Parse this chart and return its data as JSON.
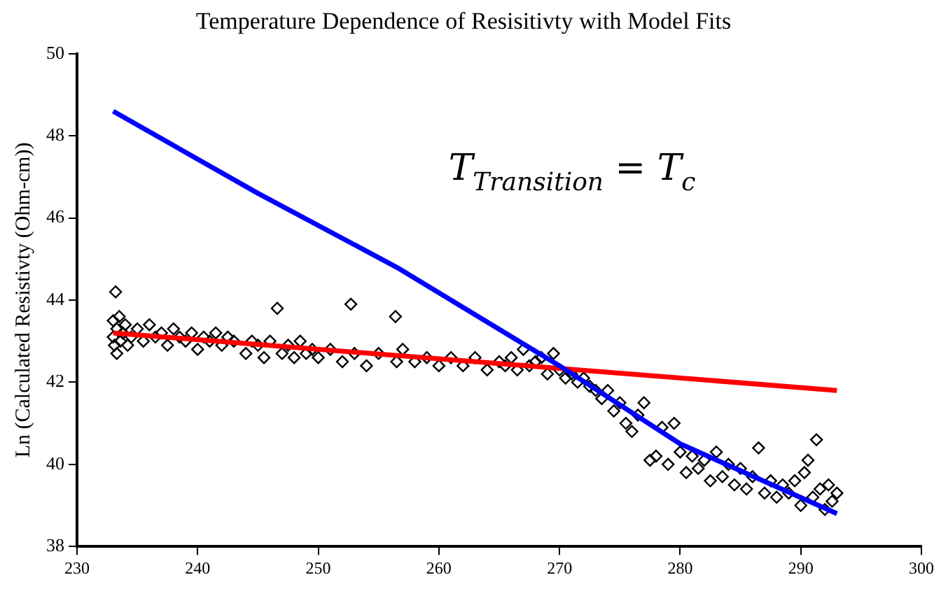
{
  "chart_data": {
    "type": "scatter",
    "title": "Temperature Dependence of Resisitivty with Model Fits",
    "ylabel": "Ln (Calculated Resistivty (Ohm-cm))",
    "annotations": [
      "T$_{Transition}$ = T$_{c}$"
    ],
    "xlim": [
      230,
      300
    ],
    "ylim": [
      38,
      50
    ],
    "xticks": [
      230,
      240,
      250,
      260,
      270,
      280,
      290,
      300
    ],
    "yticks": [
      38,
      40,
      42,
      44,
      46,
      48,
      50
    ],
    "grid": false,
    "legend": false,
    "marker": "diamond",
    "series": [
      {
        "color": "#000000",
        "x": [
          233,
          233,
          233.1,
          233.2,
          233.3,
          233.3,
          233.5,
          233.6,
          233.8,
          234,
          234.2,
          234.5,
          235,
          235.5,
          236,
          236.5,
          237,
          237.5,
          238,
          238.5,
          239,
          239.5,
          240,
          240.5,
          241,
          241.5,
          242,
          242.5,
          243,
          244,
          244.5,
          245,
          245.5,
          246,
          246.6,
          247,
          247.5,
          248,
          248.5,
          249,
          249.5,
          250,
          251,
          252,
          252.7,
          253,
          254,
          255,
          256.4,
          256.5,
          257,
          258,
          259,
          260,
          261,
          262,
          263,
          264,
          265,
          265.5,
          266,
          266.5,
          267,
          267.5,
          268,
          268.5,
          269,
          269.5,
          270,
          270.5,
          271,
          271.5,
          272,
          272.5,
          273,
          273.5,
          274,
          274.5,
          275,
          275.5,
          276,
          276.5,
          277,
          277.5,
          278,
          278.5,
          279,
          279.5,
          280,
          280.5,
          281,
          281.5,
          282,
          282.5,
          283,
          283.5,
          284,
          284.5,
          285,
          285.5,
          286,
          286.5,
          287,
          287.5,
          288,
          288.5,
          289,
          289.5,
          290,
          290.3,
          290.6,
          291,
          291.3,
          291.6,
          292,
          292.3,
          292.6,
          293
        ],
        "values": [
          43.5,
          43.1,
          42.9,
          44.2,
          43.3,
          42.7,
          43.6,
          43.0,
          43.2,
          43.4,
          42.9,
          43.1,
          43.3,
          43.0,
          43.4,
          43.1,
          43.2,
          42.9,
          43.3,
          43.1,
          43.0,
          43.2,
          42.8,
          43.1,
          43.0,
          43.2,
          42.9,
          43.1,
          43.0,
          42.7,
          43.0,
          42.9,
          42.6,
          43.0,
          43.8,
          42.7,
          42.9,
          42.6,
          43.0,
          42.7,
          42.8,
          42.6,
          42.8,
          42.5,
          43.9,
          42.7,
          42.4,
          42.7,
          43.6,
          42.5,
          42.8,
          42.5,
          42.6,
          42.4,
          42.6,
          42.4,
          42.6,
          42.3,
          42.5,
          42.4,
          42.6,
          42.3,
          42.8,
          42.4,
          42.5,
          42.6,
          42.2,
          42.7,
          42.3,
          42.1,
          42.2,
          42.0,
          42.1,
          41.9,
          41.8,
          41.6,
          41.8,
          41.3,
          41.5,
          41.0,
          40.8,
          41.2,
          41.5,
          40.1,
          40.2,
          40.9,
          40.0,
          41.0,
          40.3,
          39.8,
          40.2,
          39.9,
          40.1,
          39.6,
          40.3,
          39.7,
          40.0,
          39.5,
          39.9,
          39.4,
          39.7,
          40.4,
          39.3,
          39.6,
          39.2,
          39.5,
          39.3,
          39.6,
          39.0,
          39.8,
          40.1,
          39.2,
          40.6,
          39.4,
          38.9,
          39.5,
          39.1,
          39.3
        ]
      },
      {
        "type": "line",
        "marker": "none",
        "color": "#0000ff",
        "x": [
          233,
          245,
          256.5,
          270,
          280,
          293
        ],
        "values": [
          48.6,
          46.6,
          44.8,
          42.4,
          40.5,
          38.8
        ]
      },
      {
        "type": "line",
        "marker": "none",
        "color": "#ff0000",
        "x": [
          233,
          293
        ],
        "values": [
          43.2,
          41.8
        ]
      }
    ]
  }
}
